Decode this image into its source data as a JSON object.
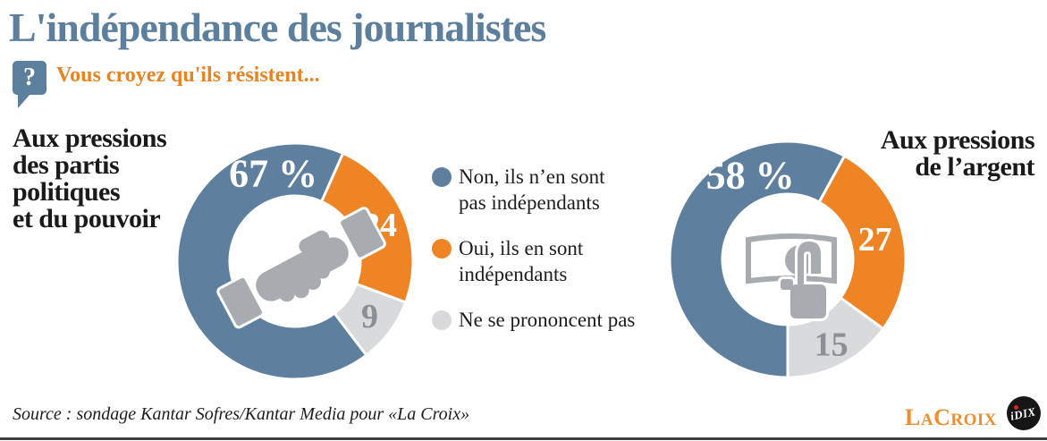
{
  "header": {
    "title": "L'indépendance des journalistes",
    "question": "Vous croyez qu'ils résistent...",
    "question_icon_glyph": "?"
  },
  "legend": {
    "items": [
      {
        "lines": [
          "Non, ils n’en sont",
          "pas indépendants"
        ],
        "color": "#5e7f9d"
      },
      {
        "lines": [
          "Oui, ils en sont",
          "indépendants"
        ],
        "color": "#ee8424"
      },
      {
        "lines": [
          "Ne se prononcent pas"
        ],
        "color": "#d8dadc"
      }
    ]
  },
  "chart_data": [
    {
      "type": "donut",
      "title_lines": [
        "Aux pressions",
        "des partis",
        "politiques",
        "et du pouvoir"
      ],
      "center_icon": "handshake-icon",
      "categories": [
        "Non, ils n'en sont pas indépendants",
        "Oui, ils en sont indépendants",
        "Ne se prononcent pas"
      ],
      "values": [
        67,
        24,
        9
      ],
      "unit": "%",
      "labels": [
        "67 %",
        "24",
        "9"
      ],
      "slice_colors": [
        "#5e7f9d",
        "#ee8424",
        "#d8dadc"
      ],
      "label_colors": [
        "#ffffff",
        "#ffffff",
        "#8b9096"
      ],
      "rotation_deg": 142.8,
      "label_angles_deg": [
        346,
        67.2,
        126.6
      ],
      "label_radii": [
        101,
        103,
        104
      ],
      "legend_position": "right-of-chart",
      "grid": false
    },
    {
      "type": "donut",
      "title_lines": [
        "Aux pressions",
        "de l’argent"
      ],
      "center_icon": "banknote-hand-icon",
      "categories": [
        "Non, ils n'en sont pas indépendants",
        "Oui, ils en sont indépendants",
        "Ne se prononcent pas"
      ],
      "values": [
        58,
        27,
        15
      ],
      "unit": "%",
      "labels": [
        "58 %",
        "27",
        "15"
      ],
      "slice_colors": [
        "#5e7f9d",
        "#ee8424",
        "#d8dadc"
      ],
      "label_colors": [
        "#ffffff",
        "#ffffff",
        "#8b9096"
      ],
      "rotation_deg": 180,
      "label_angles_deg": [
        336,
        77.4,
        153
      ],
      "label_radii": [
        103,
        100,
        107
      ],
      "legend_position": "left-of-chart",
      "grid": false
    }
  ],
  "footer": {
    "source": "Source : sondage Kantar Sofres/Kantar Media pour «La Croix»",
    "brand_parts": [
      "LA",
      "CROIX"
    ],
    "partner": "iDIX"
  }
}
